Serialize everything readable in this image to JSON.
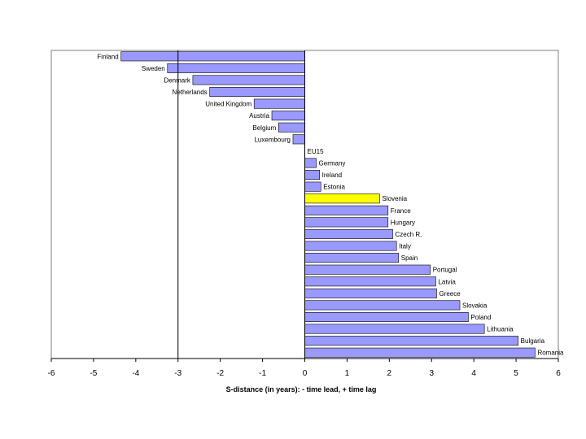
{
  "chart_data": {
    "type": "bar",
    "orientation": "horizontal",
    "title": "",
    "xlabel": "S-distance (in years):  - time lead,  + time lag",
    "ylabel": "",
    "xlim": [
      -6,
      6
    ],
    "xticks": [
      -6,
      -5,
      -4,
      -3,
      -2,
      -1,
      0,
      1,
      2,
      3,
      4,
      5,
      6
    ],
    "reference_line_x": -3,
    "grid": false,
    "colors": {
      "bar": "#9999ff",
      "highlight": "#ffff00",
      "stroke": "#000000"
    },
    "highlight": "Slovenia",
    "categories": [
      "Finland",
      "Sweden",
      "Denmark",
      "Netherlands",
      "United Kingdom",
      "Austria",
      "Belgium",
      "Luxembourg",
      "EU15",
      "Germany",
      "Ireland",
      "Estonia",
      "Slovenia",
      "France",
      "Hungary",
      "Czech R.",
      "Italy",
      "Spain",
      "Portugal",
      "Latvia",
      "Greece",
      "Slovakia",
      "Poland",
      "Lithuania",
      "Bulgaria",
      "Romania"
    ],
    "values": [
      -4.35,
      -3.25,
      -2.65,
      -2.25,
      -1.2,
      -0.78,
      -0.62,
      -0.28,
      0,
      0.27,
      0.35,
      0.38,
      1.77,
      1.97,
      1.97,
      2.08,
      2.17,
      2.22,
      2.97,
      3.1,
      3.12,
      3.67,
      3.87,
      4.25,
      5.05,
      5.45
    ]
  }
}
